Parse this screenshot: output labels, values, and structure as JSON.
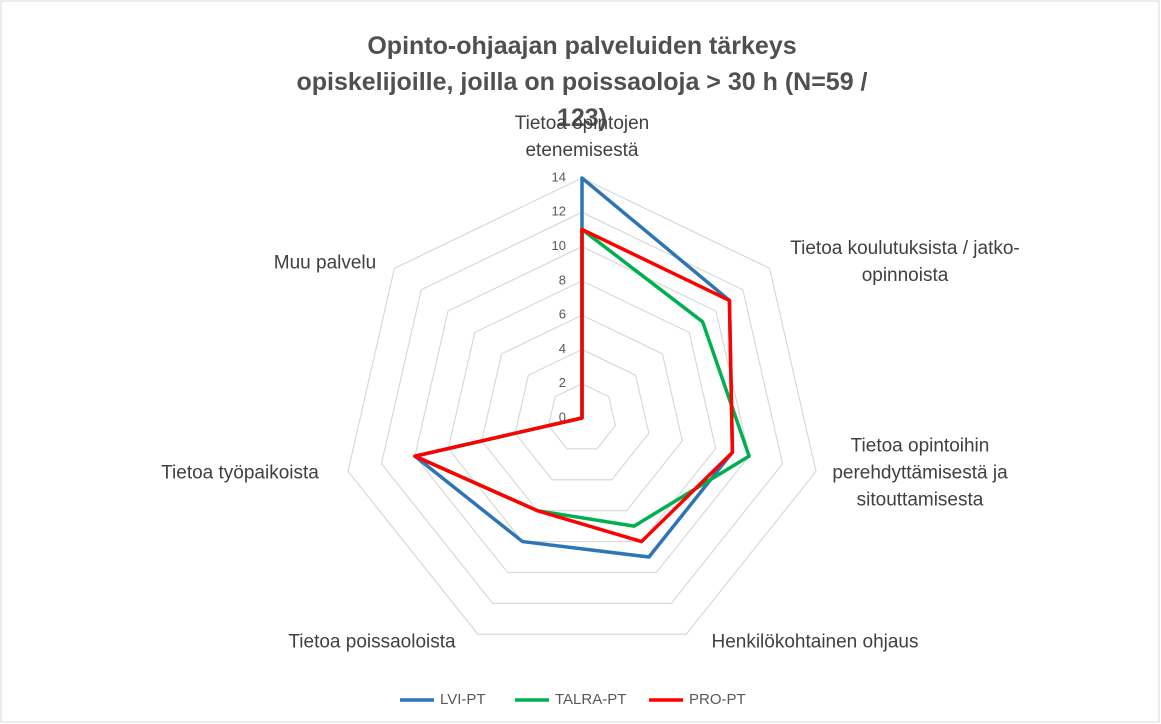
{
  "chart_data": {
    "type": "radar",
    "title": "Opinto-ohjaajan palveluiden tärkeys opiskelijoille, joilla on poissaoloja > 30 h (N=59 / 123)",
    "categories": [
      "Tietoa opintojen etenemisestä",
      "Tietoa koulutuksista / jatko-opinnoista",
      "Tietoa opintoihin perehdyttämisestä ja sitouttamisesta",
      "Henkilökohtainen ohjaus",
      "Tietoa poissaoloista",
      "Tietoa työpaikoista",
      "Muu palvelu"
    ],
    "series": [
      {
        "name": "LVI-PT",
        "color": "#2e75b6",
        "values": [
          14,
          11,
          9,
          9,
          8,
          10,
          0
        ]
      },
      {
        "name": "TALRA-PT",
        "color": "#00b050",
        "values": [
          11,
          9,
          10,
          7,
          6,
          10,
          0
        ]
      },
      {
        "name": "PRO-PT",
        "color": "#ff0000",
        "values": [
          11,
          11,
          9,
          8,
          6,
          10,
          0
        ]
      }
    ],
    "ylim": [
      0,
      14
    ],
    "yticks": [
      0,
      2,
      4,
      6,
      8,
      10,
      12,
      14
    ],
    "grid": true,
    "legend": "bottom"
  }
}
